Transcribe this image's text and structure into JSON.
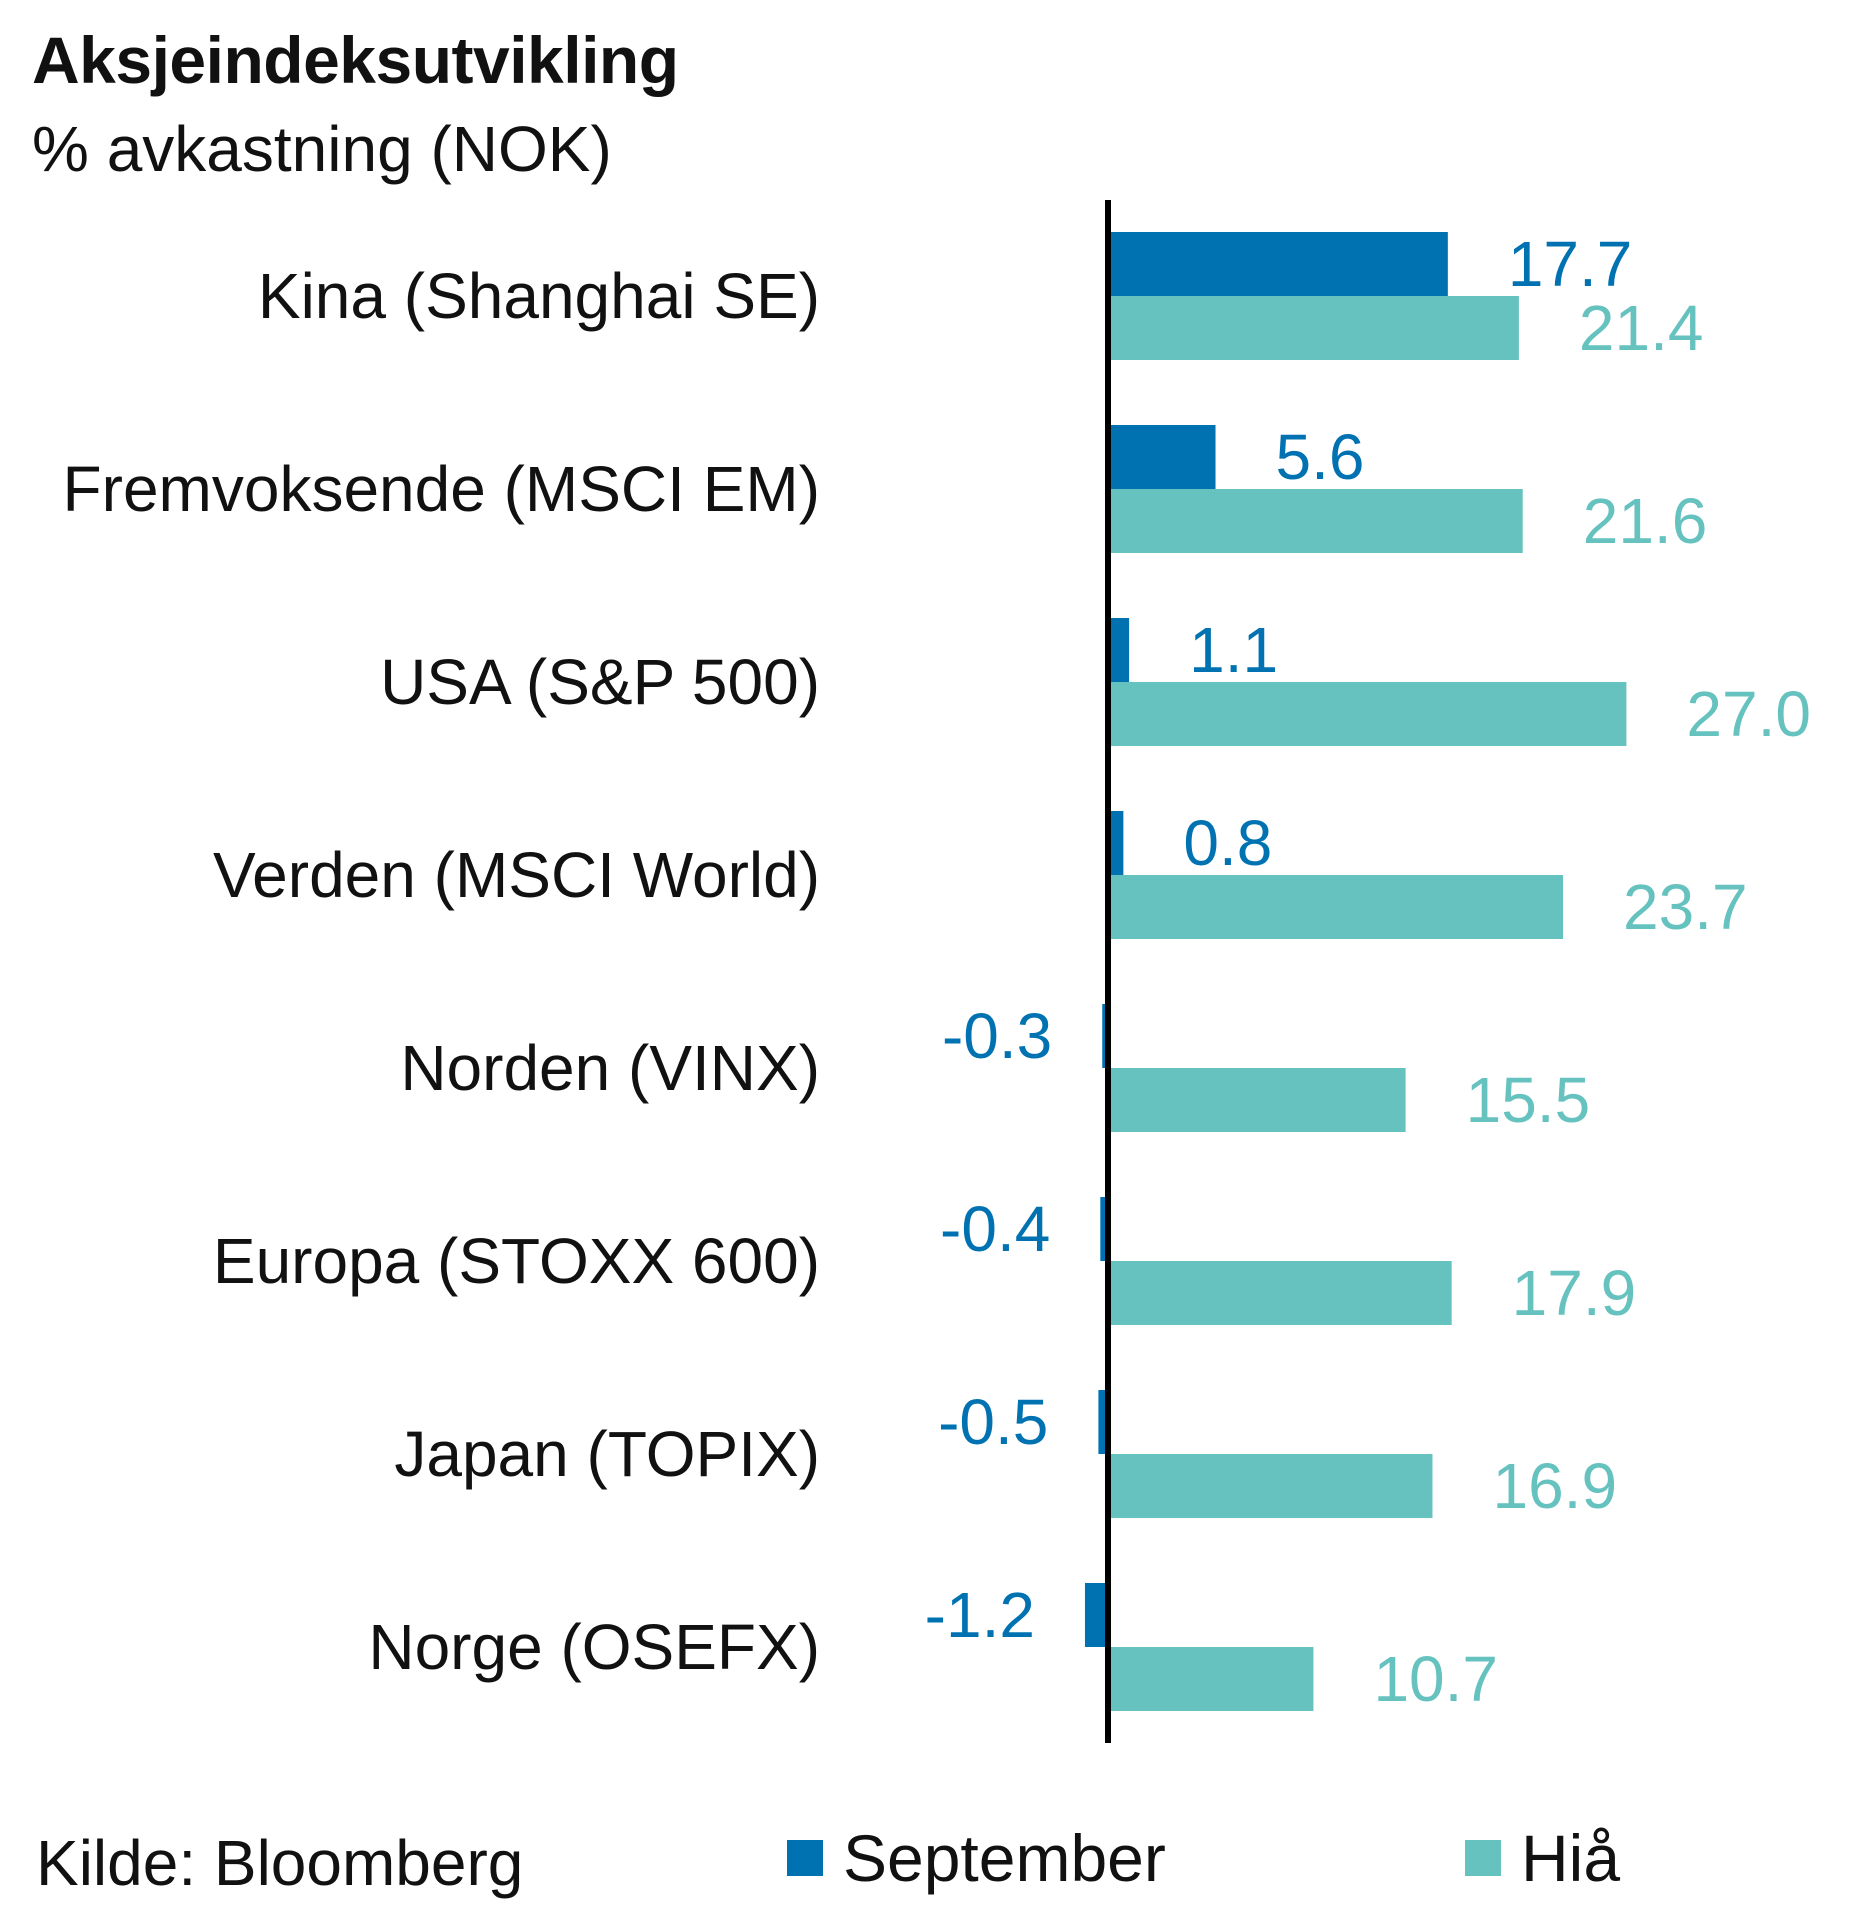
{
  "header": {
    "title": "Aksjeindeksutvikling",
    "subtitle": "% avkastning (NOK)"
  },
  "footer": {
    "source": "Kilde: Bloomberg"
  },
  "colors": {
    "september": "#0072b1",
    "hia": "#66c2bf",
    "axis": "#000000"
  },
  "chart_data": {
    "type": "bar",
    "orientation": "horizontal",
    "title": "Aksjeindeksutvikling",
    "subtitle": "% avkastning (NOK)",
    "categories": [
      "Kina (Shanghai SE)",
      "Fremvoksende (MSCI EM)",
      "USA (S&P 500)",
      "Verden (MSCI World)",
      "Norden (VINX)",
      "Europa (STOXX 600)",
      "Japan (TOPIX)",
      "Norge (OSEFX)"
    ],
    "series": [
      {
        "name": "September",
        "values": [
          17.7,
          5.6,
          1.1,
          0.8,
          -0.3,
          -0.4,
          -0.5,
          -1.2
        ],
        "labels": [
          "17.7",
          "5.6",
          "1.1",
          "0.8",
          "-0.3",
          "-0.4",
          "-0.5",
          "-1.2"
        ]
      },
      {
        "name": "Hiå",
        "values": [
          21.4,
          21.6,
          27.0,
          23.7,
          15.5,
          17.9,
          16.9,
          10.7
        ],
        "labels": [
          "21.4",
          "21.6",
          "27.0",
          "23.7",
          "15.5",
          "17.9",
          "16.9",
          "10.7"
        ]
      }
    ],
    "xlim": [
      -1.2,
      27.0
    ],
    "grid": false,
    "legend": "bottom"
  }
}
